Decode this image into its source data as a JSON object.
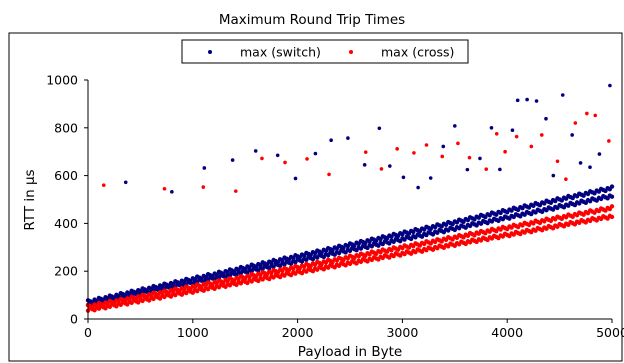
{
  "chart_data": {
    "type": "scatter",
    "title": "Maximum Round Trip Times",
    "xlabel": "Payload in Byte",
    "ylabel": "RTT in µs",
    "xlim": [
      0,
      5000
    ],
    "ylim": [
      0,
      1000
    ],
    "xticks": [
      0,
      1000,
      2000,
      3000,
      4000,
      5000
    ],
    "yticks": [
      0,
      200,
      400,
      600,
      800,
      1000
    ],
    "grid": false,
    "legend_position": "top",
    "series": [
      {
        "name": "max (switch)",
        "color": "#000080",
        "bands": [
          {
            "x": [
              0,
              5000
            ],
            "y": [
              72,
              548
            ],
            "width": 6
          },
          {
            "x": [
              0,
              5000
            ],
            "y": [
              62,
              515
            ],
            "width": 6
          }
        ],
        "outliers": [
          [
            360,
            572
          ],
          [
            800,
            532
          ],
          [
            1110,
            632
          ],
          [
            1380,
            665
          ],
          [
            1600,
            703
          ],
          [
            1810,
            685
          ],
          [
            1980,
            588
          ],
          [
            2170,
            692
          ],
          [
            2320,
            748
          ],
          [
            2480,
            757
          ],
          [
            2640,
            645
          ],
          [
            2780,
            798
          ],
          [
            2880,
            640
          ],
          [
            3010,
            593
          ],
          [
            3150,
            550
          ],
          [
            3270,
            590
          ],
          [
            3390,
            722
          ],
          [
            3500,
            808
          ],
          [
            3620,
            625
          ],
          [
            3740,
            672
          ],
          [
            3850,
            800
          ],
          [
            3930,
            626
          ],
          [
            4050,
            790
          ],
          [
            4100,
            915
          ],
          [
            4190,
            918
          ],
          [
            4280,
            912
          ],
          [
            4370,
            838
          ],
          [
            4440,
            600
          ],
          [
            4530,
            937
          ],
          [
            4620,
            770
          ],
          [
            4700,
            653
          ],
          [
            4790,
            635
          ],
          [
            4880,
            690
          ],
          [
            4980,
            977
          ]
        ]
      },
      {
        "name": "max (cross)",
        "color": "#ff0000",
        "bands": [
          {
            "x": [
              0,
              5000
            ],
            "y": [
              52,
              465
            ],
            "width": 6
          },
          {
            "x": [
              0,
              5000
            ],
            "y": [
              38,
              430
            ],
            "width": 6
          }
        ],
        "outliers": [
          [
            150,
            560
          ],
          [
            730,
            545
          ],
          [
            1100,
            552
          ],
          [
            1410,
            535
          ],
          [
            1660,
            672
          ],
          [
            1880,
            655
          ],
          [
            2090,
            670
          ],
          [
            2300,
            605
          ],
          [
            2650,
            698
          ],
          [
            2800,
            628
          ],
          [
            2950,
            712
          ],
          [
            3110,
            695
          ],
          [
            3230,
            728
          ],
          [
            3380,
            680
          ],
          [
            3530,
            735
          ],
          [
            3640,
            675
          ],
          [
            3800,
            627
          ],
          [
            3900,
            775
          ],
          [
            3980,
            700
          ],
          [
            4090,
            763
          ],
          [
            4230,
            722
          ],
          [
            4330,
            770
          ],
          [
            4480,
            660
          ],
          [
            4560,
            585
          ],
          [
            4650,
            820
          ],
          [
            4760,
            860
          ],
          [
            4840,
            852
          ],
          [
            4970,
            745
          ]
        ]
      }
    ]
  }
}
